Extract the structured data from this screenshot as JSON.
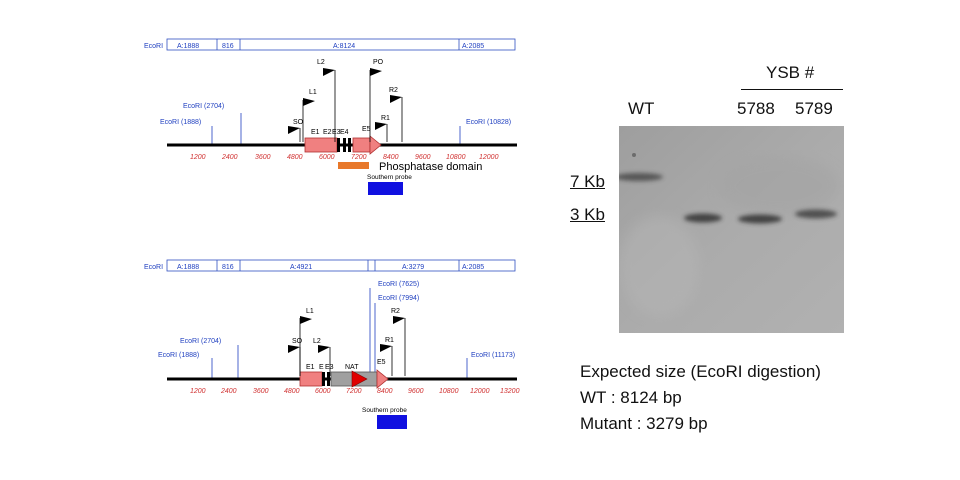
{
  "maps": [
    {
      "segment_labels": [
        "EcoRI",
        "A:1888",
        "816",
        "A:8124",
        "A:2085"
      ],
      "sites": [
        "EcoRI (1888)",
        "EcoRI (2704)",
        "EcoRI (10828)"
      ],
      "ticks": [
        "1200",
        "2400",
        "3600",
        "4800",
        "6000",
        "7200",
        "8400",
        "9600",
        "10800",
        "12000"
      ],
      "features": [
        "E1",
        "E2",
        "E3",
        "E4",
        "E5"
      ],
      "primers": [
        "SO",
        "L1",
        "L2",
        "PO",
        "R2",
        "R1"
      ],
      "domain_label": "Phosphatase domain",
      "probe_label": "Southern probe"
    },
    {
      "segment_labels": [
        "EcoRI",
        "A:1888",
        "816",
        "A:4921",
        "A:3279",
        "A:2085"
      ],
      "sites": [
        "EcoRI (1888)",
        "EcoRI (2704)",
        "EcoRI (7625)",
        "EcoRI (7994)",
        "EcoRI (11173)"
      ],
      "ticks": [
        "1200",
        "2400",
        "3600",
        "4800",
        "6000",
        "7200",
        "8400",
        "9600",
        "10800",
        "12000",
        "13200"
      ],
      "features": [
        "E1",
        "E",
        "E3",
        "NAT",
        "E5"
      ],
      "primers": [
        "SO",
        "L1",
        "L2",
        "R2",
        "R1"
      ],
      "probe_label": "Southern probe"
    }
  ],
  "gel": {
    "group_label": "YSB #",
    "lanes": [
      "WT",
      "5788",
      "5789"
    ],
    "markers": [
      "7 Kb",
      "3 Kb"
    ]
  },
  "expected": {
    "title": "Expected size (EcoRI digestion)",
    "wt": "WT : 8124 bp",
    "mutant": "Mutant : 3279 bp"
  },
  "colors": {
    "exon": "#f08080",
    "exon_stroke": "#b03030",
    "domain": "#e8782a",
    "probe": "#1010e0",
    "nat": "#e00000",
    "cassette": "#a0a0a0",
    "site_line": "#2040c0",
    "tick_label": "#d03030",
    "gel_bg": "#a9a9a9"
  }
}
